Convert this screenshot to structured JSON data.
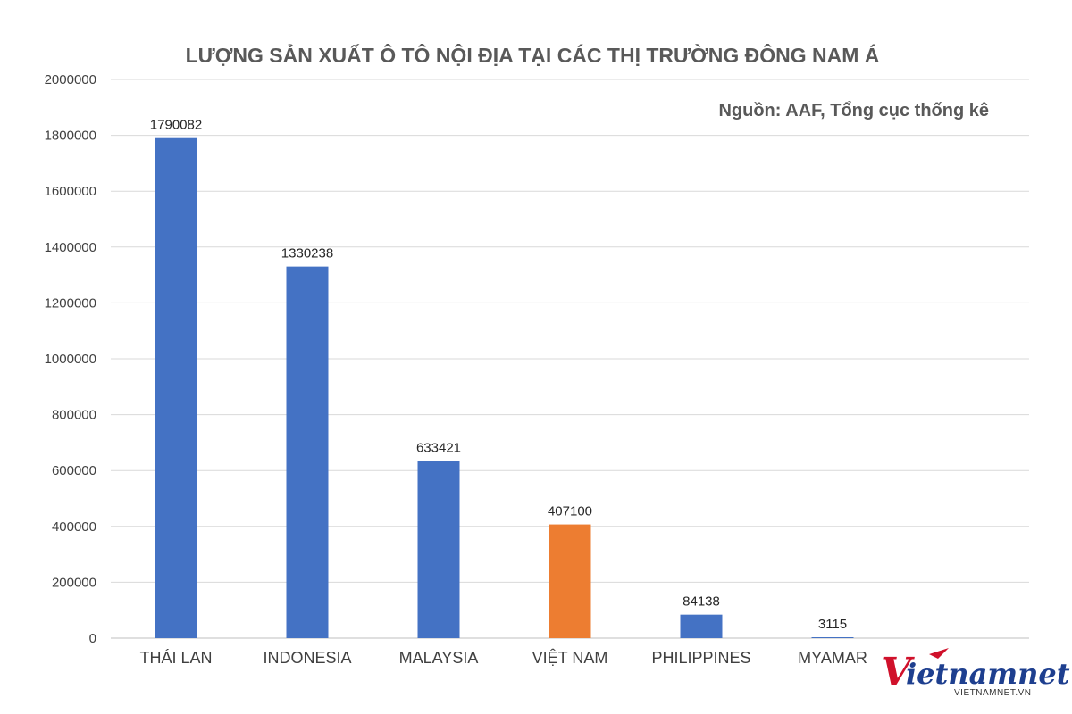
{
  "chart_data": {
    "type": "bar",
    "title": "LƯỢNG SẢN XUẤT Ô TÔ NỘI ĐỊA TẠI CÁC THỊ TRƯỜNG ĐÔNG NAM Á",
    "source_note": "Nguồn: AAF, Tổng cục thống kê",
    "categories": [
      "THÁI LAN",
      "INDONESIA",
      "MALAYSIA",
      "VIỆT NAM",
      "PHILIPPINES",
      "MYAMAR"
    ],
    "values": [
      1790082,
      1330238,
      633421,
      407100,
      84138,
      3115
    ],
    "data_labels": [
      "1790082",
      "1330238",
      "633421",
      "407100",
      "84138",
      "3115"
    ],
    "ylim": [
      0,
      2000000
    ],
    "y_ticks": [
      "0",
      "200000",
      "400000",
      "600000",
      "800000",
      "1000000",
      "1200000",
      "1400000",
      "1600000",
      "1800000",
      "2000000"
    ],
    "y_tick_values": [
      0,
      200000,
      400000,
      600000,
      800000,
      1000000,
      1200000,
      1400000,
      1600000,
      1800000,
      2000000
    ],
    "grid": true,
    "colors": {
      "default_bar": "#4472C4",
      "highlight_bar": "#ED7D31",
      "highlight_category": "VIỆT NAM"
    }
  },
  "logo": {
    "wordmark_v": "V",
    "wordmark_rest": "ietnamnet",
    "url": "VIETNAMNET.VN",
    "red": "#D0112B",
    "blue": "#1E3F8F"
  }
}
